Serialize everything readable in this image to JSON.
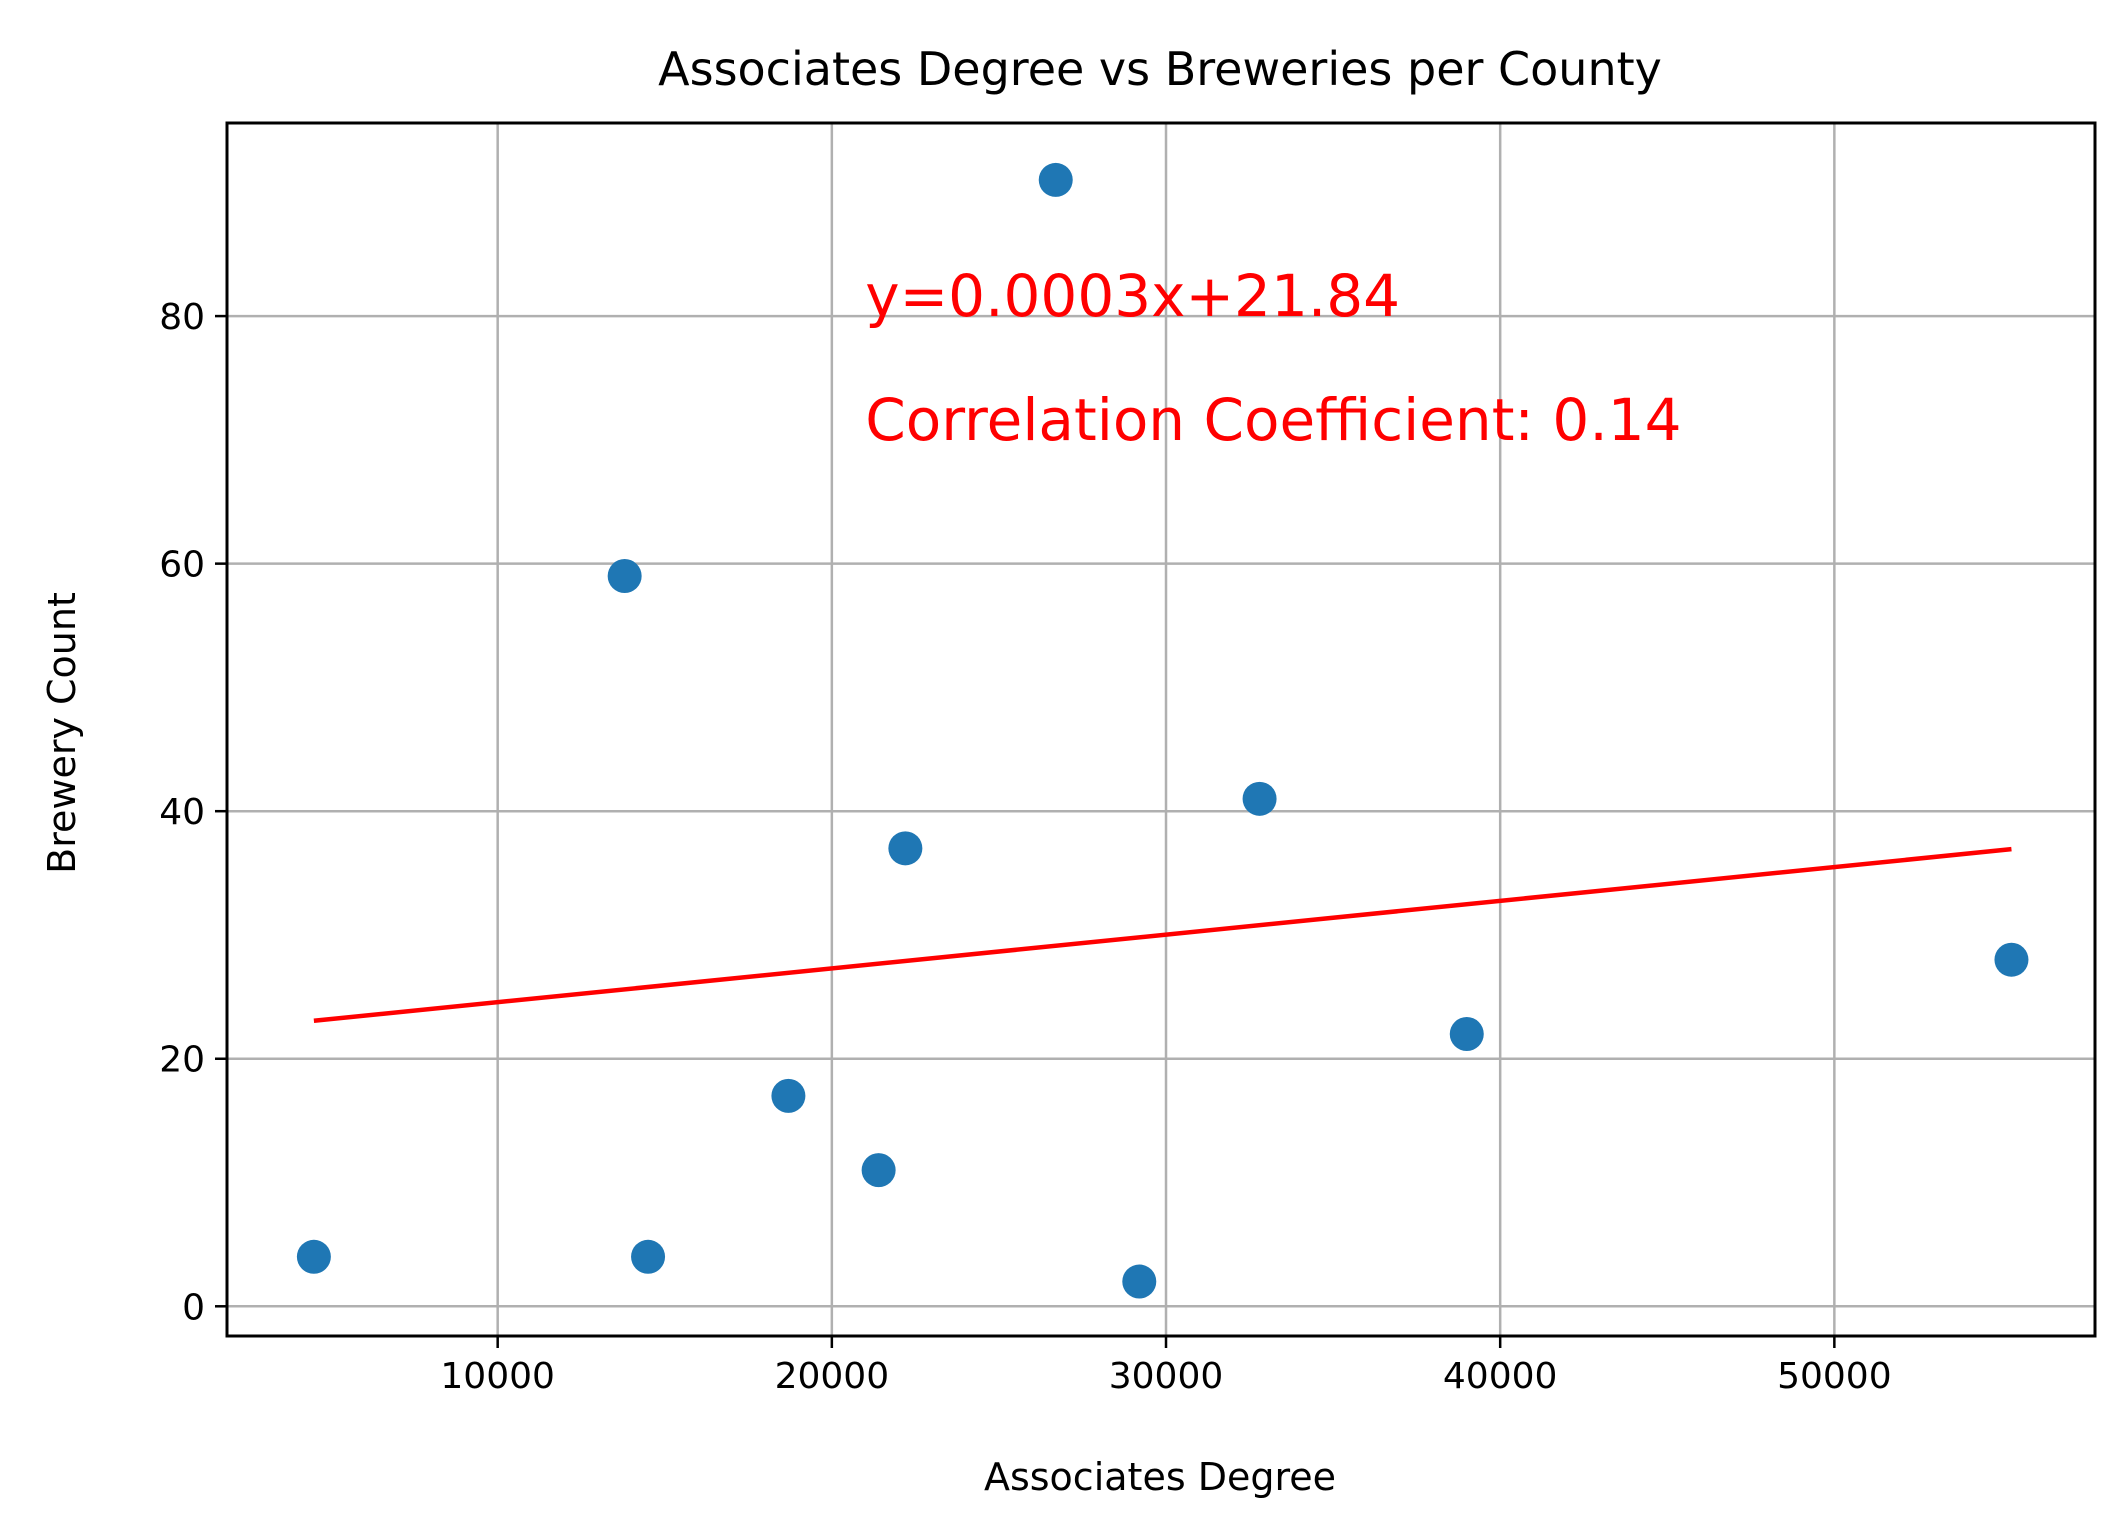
{
  "chart_data": {
    "type": "scatter",
    "title": "Associates Degree vs Breweries per County",
    "xlabel": "Associates Degree",
    "ylabel": "Brewery Count",
    "xlim": [
      1900,
      57800
    ],
    "ylim": [
      -2.4,
      95.6
    ],
    "x_ticks": [
      10000,
      20000,
      30000,
      40000,
      50000
    ],
    "y_ticks": [
      0,
      20,
      40,
      60,
      80
    ],
    "grid": true,
    "point_color": "#1f77b4",
    "points": [
      {
        "x": 4500,
        "y": 4
      },
      {
        "x": 13800,
        "y": 59
      },
      {
        "x": 14500,
        "y": 4
      },
      {
        "x": 18700,
        "y": 17
      },
      {
        "x": 21400,
        "y": 11
      },
      {
        "x": 22200,
        "y": 37
      },
      {
        "x": 26700,
        "y": 91
      },
      {
        "x": 29200,
        "y": 2
      },
      {
        "x": 32800,
        "y": 41
      },
      {
        "x": 39000,
        "y": 22
      },
      {
        "x": 55300,
        "y": 28
      }
    ],
    "regression": {
      "slope": 0.0002729,
      "intercept": 21.84,
      "x_range": [
        4500,
        55300
      ],
      "color": "#ff0000"
    },
    "annotations": [
      {
        "text": "y=0.0003x+21.84",
        "x": 21000,
        "y": 80,
        "color": "#ff0000"
      },
      {
        "text": "Correlation Coefficient: 0.14",
        "x": 21000,
        "y": 70,
        "color": "#ff0000"
      }
    ]
  }
}
